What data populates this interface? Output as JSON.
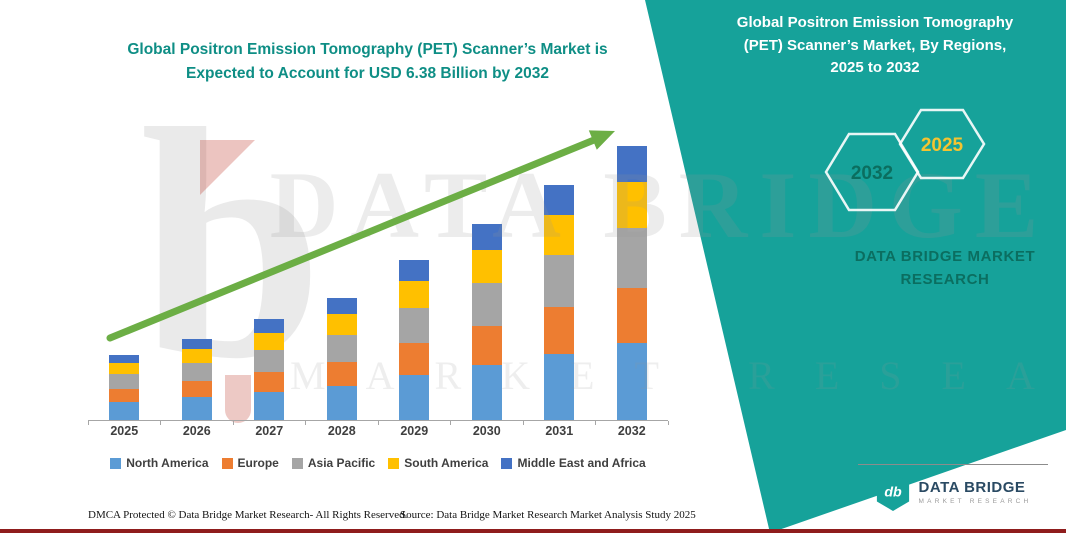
{
  "chart_title": {
    "line1": "Global Positron Emission Tomography (PET) Scanner’s Market is",
    "line2": "Expected to Account for USD 6.38 Billion by 2032"
  },
  "right_panel": {
    "title_line1": "Global Positron Emission Tomography",
    "title_line2": "(PET) Scanner’s Market, By Regions,",
    "title_line3": "2025 to 2032",
    "hexagons": [
      {
        "label": "2032"
      },
      {
        "label": "2025"
      }
    ],
    "brand_line1": "DATA BRIDGE MARKET",
    "brand_line2": "RESEARCH"
  },
  "watermark": {
    "line1": "DATA BRIDGE",
    "line2": "MARKET RESEARCH",
    "logo_letter": "b"
  },
  "logo": {
    "name": "DATA BRIDGE",
    "subtitle": "MARKET RESEARCH",
    "monogram": "db"
  },
  "footer": {
    "dmca": "DMCA Protected © Data Bridge Market Research- All Rights Reserved.",
    "source": "Source: Data Bridge Market Research Market Analysis Study 2025"
  },
  "theme": {
    "teal": "#16a29a",
    "chart_title_color": "#0e8e85",
    "panel_title_color": "#ffffff",
    "brand_text_color": "#0b6e60",
    "hex_2032_color": "#0b6e5f",
    "hex_2025_color": "#f4c430",
    "arrow_color": "#6cae45",
    "axis_text_color": "#3f3f3f",
    "bottom_line_color": "#8f1d1d"
  },
  "chart_data": {
    "type": "bar",
    "stacked": true,
    "title": "Global Positron Emission Tomography (PET) Scanner’s Market is Expected to Account for USD 6.38 Billion by 2032",
    "categories": [
      "2025",
      "2026",
      "2027",
      "2028",
      "2029",
      "2030",
      "2031",
      "2032"
    ],
    "series": [
      {
        "name": "North America",
        "color": "#5b9bd5",
        "values": [
          0.43,
          0.53,
          0.66,
          0.79,
          1.04,
          1.29,
          1.53,
          1.79
        ]
      },
      {
        "name": "Europe",
        "color": "#ed7d31",
        "values": [
          0.31,
          0.38,
          0.47,
          0.56,
          0.74,
          0.92,
          1.1,
          1.28
        ]
      },
      {
        "name": "Asia Pacific",
        "color": "#a5a5a5",
        "values": [
          0.34,
          0.42,
          0.52,
          0.62,
          0.81,
          1.01,
          1.21,
          1.4
        ]
      },
      {
        "name": "South America",
        "color": "#ffc000",
        "values": [
          0.26,
          0.32,
          0.4,
          0.48,
          0.63,
          0.78,
          0.93,
          1.08
        ]
      },
      {
        "name": "Middle East and Africa",
        "color": "#4472c4",
        "values": [
          0.19,
          0.24,
          0.32,
          0.37,
          0.48,
          0.6,
          0.71,
          0.83
        ]
      }
    ],
    "totals": [
      1.53,
      1.89,
      2.37,
      2.82,
      3.7,
      4.6,
      5.48,
      6.38
    ],
    "ylim": [
      0,
      7
    ],
    "grid": false,
    "legend_position": "bottom"
  }
}
